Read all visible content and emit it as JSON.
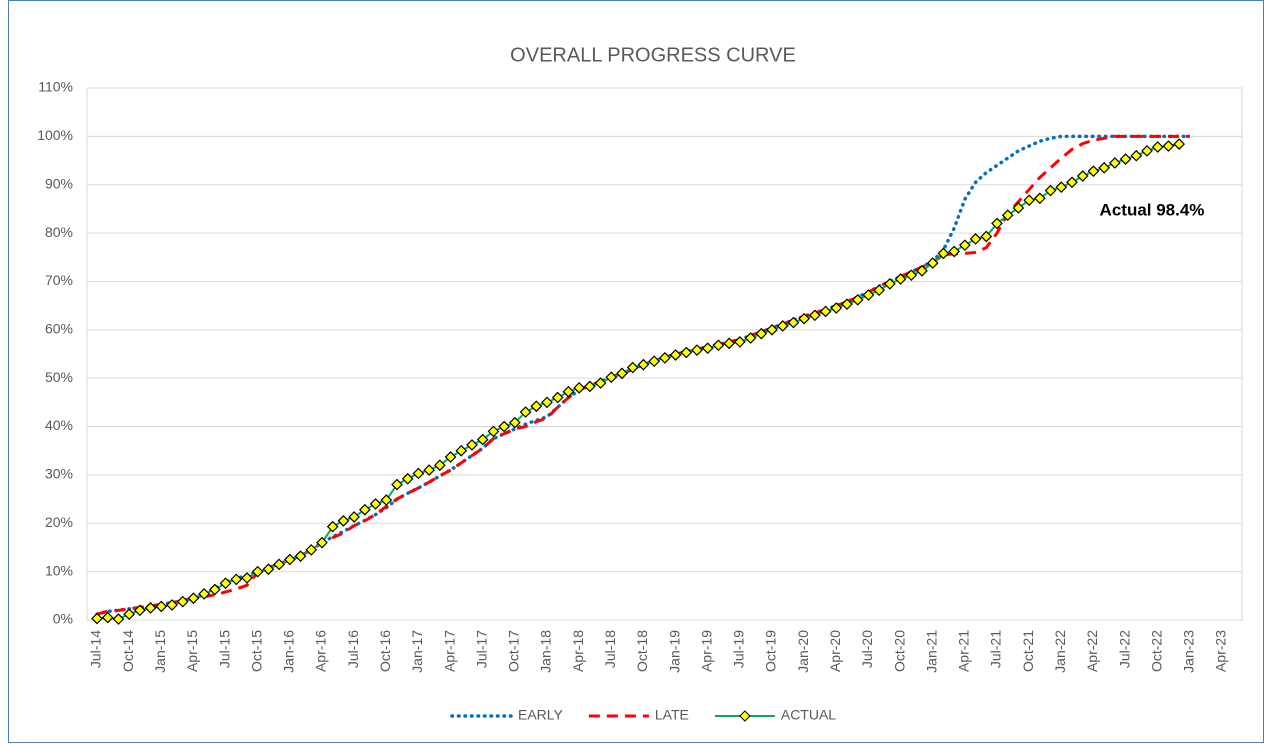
{
  "chart_data": {
    "type": "line",
    "title": "OVERALL PROGRESS CURVE",
    "categories": [
      "Jul-14",
      null,
      null,
      "Oct-14",
      null,
      null,
      "Jan-15",
      null,
      null,
      "Apr-15",
      null,
      null,
      "Jul-15",
      null,
      null,
      "Oct-15",
      null,
      null,
      "Jan-16",
      null,
      null,
      "Apr-16",
      null,
      null,
      "Jul-16",
      null,
      null,
      "Oct-16",
      null,
      null,
      "Jan-17",
      null,
      null,
      "Apr-17",
      null,
      null,
      "Jul-17",
      null,
      null,
      "Oct-17",
      null,
      null,
      "Jan-18",
      null,
      null,
      "Apr-18",
      null,
      null,
      "Jul-18",
      null,
      null,
      "Oct-18",
      null,
      null,
      "Jan-19",
      null,
      null,
      "Apr-19",
      null,
      null,
      "Jul-19",
      null,
      null,
      "Oct-19",
      null,
      null,
      "Jan-20",
      null,
      null,
      "Apr-20",
      null,
      null,
      "Jul-20",
      null,
      null,
      "Oct-20",
      null,
      null,
      "Jan-21",
      null,
      null,
      "Apr-21",
      null,
      null,
      "Jul-21",
      null,
      null,
      "Oct-21",
      null,
      null,
      "Jan-22",
      null,
      null,
      "Apr-22",
      null,
      null,
      "Jul-22",
      null,
      null,
      "Oct-22",
      null,
      null,
      "Jan-23",
      null,
      null,
      "Apr-23"
    ],
    "series": [
      {
        "name": "EARLY",
        "color": "#0070c0",
        "values": [
          1.2,
          1.8,
          2.0,
          2.3,
          2.6,
          2.9,
          3.2,
          3.6,
          4.0,
          4.5,
          5.3,
          6.5,
          7.8,
          8.6,
          9.2,
          10.0,
          10.8,
          11.6,
          12.4,
          13.3,
          14.5,
          16.0,
          17.2,
          18.3,
          19.5,
          20.6,
          21.8,
          23.2,
          25.0,
          26.2,
          27.3,
          28.5,
          29.8,
          31.0,
          32.5,
          34.0,
          35.5,
          37.5,
          38.5,
          39.5,
          40.5,
          41.3,
          42.0,
          44.0,
          46.0,
          47.5,
          48.5,
          49.3,
          50.2,
          51.0,
          51.8,
          52.8,
          53.6,
          54.3,
          55.0,
          55.5,
          56.0,
          56.5,
          57.0,
          57.5,
          58.0,
          58.8,
          59.6,
          60.4,
          61.2,
          62.0,
          62.8,
          63.5,
          64.2,
          65.0,
          65.8,
          66.8,
          67.8,
          69.0,
          70.0,
          71.0,
          72.0,
          73.0,
          74.2,
          76.5,
          81,
          87,
          90.5,
          92.5,
          94,
          95.5,
          97,
          98,
          99,
          99.6,
          100,
          100,
          100,
          100,
          100,
          100,
          100,
          100,
          100,
          100,
          100,
          100,
          100,
          null,
          null,
          null
        ]
      },
      {
        "name": "LATE",
        "color": "#ff0000",
        "values": [
          1.2,
          1.8,
          2.0,
          2.3,
          2.6,
          2.9,
          3.2,
          3.6,
          4.0,
          4.5,
          4.8,
          5.2,
          5.8,
          6.4,
          7.2,
          9.8,
          10.8,
          11.6,
          12.4,
          13.3,
          14.5,
          16.0,
          17.0,
          18.0,
          19.5,
          20.5,
          21.8,
          23.5,
          25.0,
          26.2,
          27.3,
          28.5,
          29.8,
          31.0,
          32.5,
          34.0,
          35.5,
          37.5,
          38.5,
          39.5,
          40.0,
          41.0,
          41.8,
          44.0,
          46.0,
          47.5,
          48.5,
          49.3,
          50.2,
          51.0,
          51.8,
          52.8,
          53.6,
          54.3,
          55.0,
          55.5,
          56.0,
          56.5,
          57.0,
          57.5,
          58.0,
          58.8,
          59.6,
          60.4,
          61.2,
          62.0,
          62.8,
          63.5,
          64.2,
          65.0,
          65.8,
          66.8,
          67.8,
          69.0,
          70.0,
          71.0,
          72.0,
          73.0,
          74.0,
          75.5,
          75.7,
          75.8,
          76.0,
          77.0,
          80.0,
          84.0,
          86.5,
          89.0,
          91.5,
          93.5,
          95.5,
          97.3,
          98.5,
          99.2,
          99.6,
          100,
          100,
          100,
          100,
          100,
          100,
          100,
          100,
          null,
          null,
          null
        ]
      },
      {
        "name": "ACTUAL",
        "color": "#00b050",
        "marker_color": "#ffff00",
        "values": [
          0.3,
          0.5,
          0.2,
          1.2,
          2.0,
          2.5,
          2.8,
          3.1,
          3.8,
          4.5,
          5.4,
          6.3,
          7.6,
          8.4,
          8.7,
          10.0,
          10.5,
          11.5,
          12.5,
          13.2,
          14.5,
          16.0,
          19.3,
          20.5,
          21.3,
          22.8,
          24.0,
          24.8,
          28.0,
          29.2,
          30.3,
          31.0,
          32.0,
          33.7,
          35.0,
          36.2,
          37.3,
          39.0,
          40.0,
          40.8,
          43.0,
          44.2,
          45.0,
          46.0,
          47.2,
          48.0,
          48.3,
          49.0,
          50.2,
          51.0,
          52.2,
          52.8,
          53.5,
          54.2,
          54.8,
          55.3,
          55.8,
          56.2,
          56.8,
          57.2,
          57.5,
          58.3,
          59.2,
          60.0,
          60.8,
          61.5,
          62.3,
          63.0,
          63.8,
          64.5,
          65.3,
          66.2,
          67.2,
          68.2,
          69.5,
          70.5,
          71.3,
          72.2,
          73.8,
          75.8,
          76.2,
          77.5,
          78.8,
          79.3,
          82.0,
          83.7,
          85.2,
          86.8,
          87.2,
          88.8,
          89.5,
          90.5,
          91.8,
          92.8,
          93.5,
          94.5,
          95.3,
          96.0,
          97.0,
          97.8,
          98.0,
          98.4,
          null,
          null,
          null,
          null
        ]
      }
    ],
    "annotation": "Actual  98.4%",
    "ylim": [
      0,
      110
    ],
    "yticks": [
      {
        "value": 0,
        "label": "0%"
      },
      {
        "value": 10,
        "label": "10%"
      },
      {
        "value": 20,
        "label": "20%"
      },
      {
        "value": 30,
        "label": "30%"
      },
      {
        "value": 40,
        "label": "40%"
      },
      {
        "value": 50,
        "label": "50%"
      },
      {
        "value": 60,
        "label": "60%"
      },
      {
        "value": 70,
        "label": "70%"
      },
      {
        "value": 80,
        "label": "80%"
      },
      {
        "value": 90,
        "label": "90%"
      },
      {
        "value": 100,
        "label": "100%"
      },
      {
        "value": 110,
        "label": "110%"
      }
    ],
    "grid": true,
    "legend": "bottom"
  }
}
